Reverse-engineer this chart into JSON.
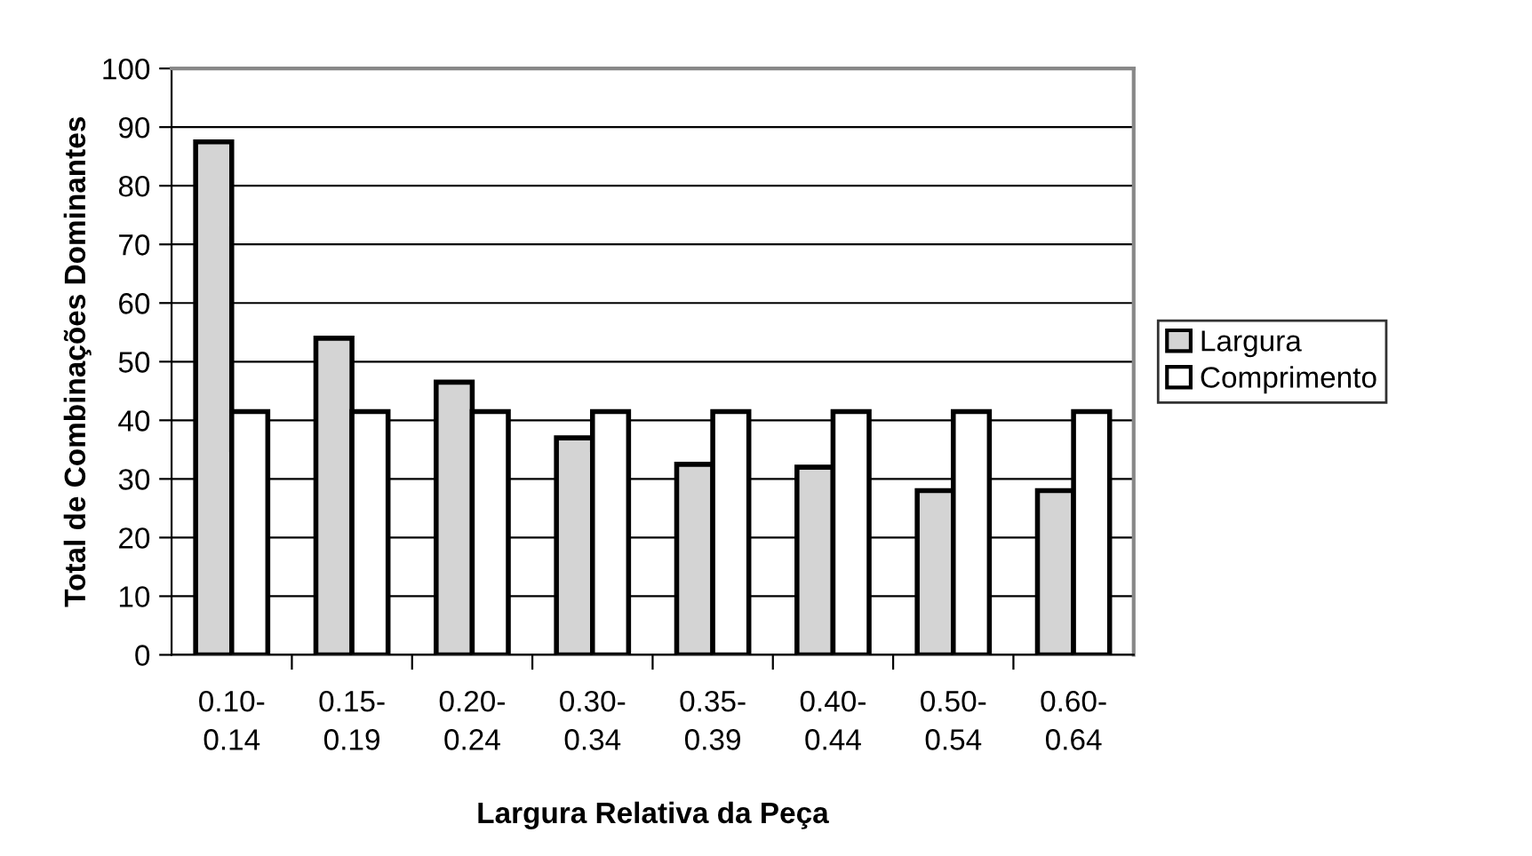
{
  "chart_data": {
    "type": "bar",
    "xlabel": "Largura Relativa da Peça",
    "ylabel": "Total de Combinações Dominantes",
    "categories": [
      "0.10-0.14",
      "0.15-0.19",
      "0.20-0.24",
      "0.30-0.34",
      "0.35-0.39",
      "0.40-0.44",
      "0.50-0.54",
      "0.60-0.64"
    ],
    "series": [
      {
        "name": "Largura",
        "color": "#d4d4d4",
        "values": [
          87.5,
          54,
          46.5,
          37,
          32.5,
          32,
          28,
          28
        ]
      },
      {
        "name": "Comprimento",
        "color": "#ffffff",
        "values": [
          41.5,
          41.5,
          41.5,
          41.5,
          41.5,
          41.5,
          41.5,
          41.5
        ]
      }
    ],
    "ylim": [
      0,
      100
    ],
    "yticks": [
      0,
      10,
      20,
      30,
      40,
      50,
      60,
      70,
      80,
      90,
      100
    ],
    "grid": "y",
    "legend": "right"
  }
}
